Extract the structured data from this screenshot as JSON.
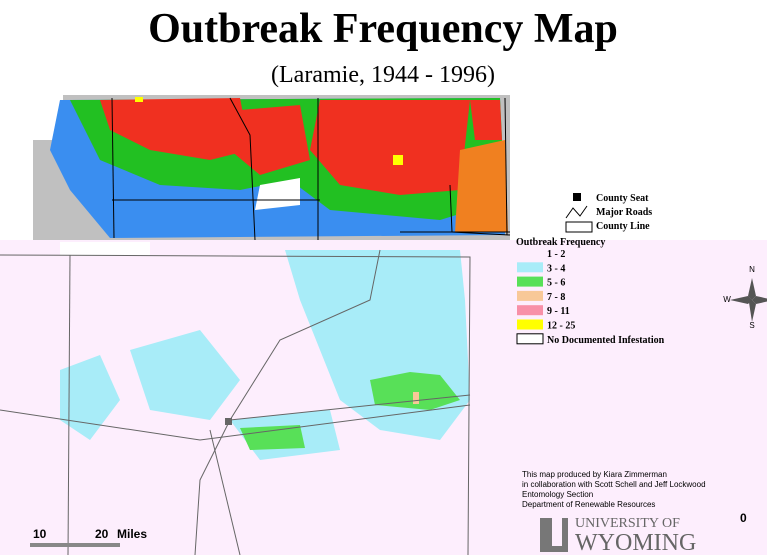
{
  "header": {
    "title": "Outbreak Frequency Map",
    "subtitle": "(Laramie, 1944 - 1996)"
  },
  "map_legend": {
    "symbols": [
      "County Seat",
      "Major Roads",
      "County Line"
    ],
    "title": "Outbreak Frequency",
    "items": [
      {
        "label": "1 - 2",
        "color": "#fdeefd"
      },
      {
        "label": "3 - 4",
        "color": "#a8ecf8"
      },
      {
        "label": "5 - 6",
        "color": "#58e058"
      },
      {
        "label": "7 - 8",
        "color": "#f8c898"
      },
      {
        "label": "9 - 11",
        "color": "#f890a8"
      },
      {
        "label": "12 - 25",
        "color": "#ffff00"
      },
      {
        "label": "No Documented Infestation",
        "color": "#ffffff"
      }
    ]
  },
  "credits": [
    "This map produced by Kiara Zimmerman",
    "in collaboration with Scott Schell and Jeff Lockwood",
    "Entomology Section",
    "Department of Renewable Resources"
  ],
  "scale": {
    "marks": [
      "10",
      "20",
      "0"
    ],
    "unit": "Miles"
  },
  "compass": [
    "N",
    "W",
    "S"
  ],
  "logo": {
    "line1": "UNIVERSITY OF",
    "line2": "WYOMING"
  }
}
